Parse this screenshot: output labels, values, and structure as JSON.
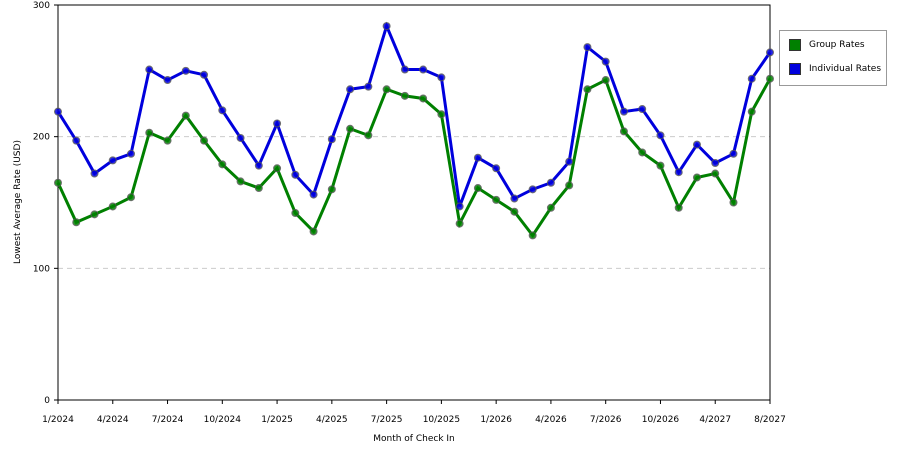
{
  "chart_data": {
    "type": "line",
    "x_label": "Month of Check In",
    "y_label": "Lowest Average Rate (USD)",
    "categories": [
      "1/2024",
      null,
      null,
      "4/2024",
      null,
      null,
      "7/2024",
      null,
      null,
      "10/2024",
      null,
      null,
      "1/2025",
      null,
      null,
      "4/2025",
      null,
      null,
      "7/2025",
      null,
      null,
      "10/2025",
      null,
      null,
      "1/2026",
      null,
      null,
      "4/2026",
      null,
      null,
      "7/2026",
      null,
      null,
      "10/2026",
      null,
      null,
      "4/2027",
      null,
      null,
      "8/2027"
    ],
    "series": [
      {
        "name": "Group Rates",
        "color": "#008000",
        "values": [
          165,
          135,
          141,
          147,
          154,
          203,
          197,
          216,
          197,
          179,
          166,
          161,
          176,
          142,
          128,
          160,
          206,
          201,
          236,
          231,
          229,
          217,
          134,
          161,
          152,
          143,
          125,
          146,
          163,
          236,
          243,
          204,
          188,
          178,
          146,
          169,
          172,
          150,
          219,
          244
        ]
      },
      {
        "name": "Individual Rates",
        "color": "#0000dd",
        "values": [
          219,
          197,
          172,
          182,
          187,
          251,
          243,
          250,
          247,
          220,
          199,
          178,
          210,
          171,
          156,
          198,
          236,
          238,
          284,
          251,
          251,
          245,
          147,
          184,
          176,
          153,
          160,
          165,
          181,
          268,
          257,
          219,
          221,
          201,
          173,
          194,
          180,
          187,
          244,
          264
        ]
      }
    ],
    "ylim": [
      0,
      300
    ],
    "yticks": [
      0,
      100,
      200,
      300
    ],
    "grid": true,
    "legend": "right"
  }
}
